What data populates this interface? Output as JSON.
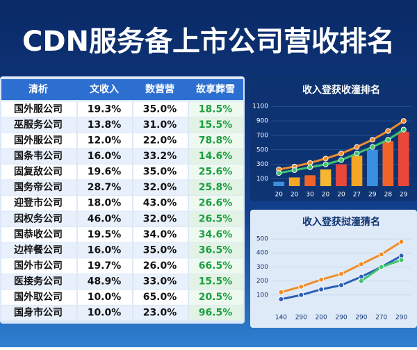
{
  "title": "CDN服务备上市公司营收排名",
  "table": {
    "header": [
      "清析",
      "文收入",
      "数营营",
      "故享葬雪"
    ],
    "rows": [
      [
        "国外服公司",
        "19.3%",
        "35.0%",
        "18.5%"
      ],
      [
        "巫服务公司",
        "13.8%",
        "31.0%",
        "15.5%"
      ],
      [
        "国外服公司",
        "12.0%",
        "22.0%",
        "78.8%"
      ],
      [
        "国条韦公司",
        "16.0%",
        "33.2%",
        "14.6%"
      ],
      [
        "固复敌公司",
        "19.6%",
        "35.0%",
        "25.6%"
      ],
      [
        "国务帝公司",
        "28.7%",
        "32.0%",
        "25.8%"
      ],
      [
        "迎登市公司",
        "18.0%",
        "43.0%",
        "26.6%"
      ],
      [
        "因权务公司",
        "46.0%",
        "32.0%",
        "26.5%"
      ],
      [
        "国恭收公司",
        "19.5%",
        "34.0%",
        "34.6%"
      ],
      [
        "边梓餐公司",
        "16.0%",
        "35.0%",
        "36.5%"
      ],
      [
        "国外市公司",
        "19.7%",
        "26.0%",
        "66.5%"
      ],
      [
        "医接务公司",
        "48.9%",
        "33.0%",
        "15.5%"
      ],
      [
        "国外取公司",
        "10.0%",
        "65.0%",
        "20.5%"
      ],
      [
        "国身市公司",
        "10.0%",
        "23.0%",
        "96.5%"
      ]
    ]
  },
  "chart_data": [
    {
      "type": "bar",
      "title": "收入登获收潼排名",
      "categories": [
        "20",
        "20",
        "30",
        "20",
        "20",
        "27",
        "29",
        "28",
        "29"
      ],
      "series": [
        {
          "type": "bar",
          "colors": [
            "#3b8fe0",
            "#f5a623",
            "#f0642a",
            "#f5b731",
            "#e8473a",
            "#f5a623",
            "#3b8fe0",
            "#f0642a",
            "#e8473a"
          ],
          "values": [
            60,
            120,
            150,
            230,
            300,
            420,
            500,
            620,
            750
          ]
        },
        {
          "type": "line",
          "color": "#f28c28",
          "values": [
            230,
            270,
            320,
            380,
            450,
            540,
            640,
            760,
            900
          ]
        },
        {
          "type": "line",
          "color": "#3ec46d",
          "values": [
            180,
            220,
            260,
            300,
            360,
            450,
            540,
            640,
            780
          ]
        }
      ],
      "ylim": [
        0,
        1150
      ],
      "yticks": [
        100,
        300,
        500,
        700,
        900,
        1100
      ]
    },
    {
      "type": "line",
      "title": "收入登获挝潼猜名",
      "categories": [
        "140",
        "290",
        "200",
        "290",
        "290",
        "270",
        "290"
      ],
      "series": [
        {
          "type": "line",
          "color": "#f28c28",
          "values": [
            120,
            160,
            210,
            250,
            320,
            390,
            480
          ]
        },
        {
          "type": "line",
          "color": "#2a5fb5",
          "values": [
            70,
            100,
            140,
            170,
            230,
            300,
            380
          ]
        },
        {
          "type": "line",
          "color": "#3ec46d",
          "values": [
            null,
            null,
            null,
            null,
            200,
            300,
            350
          ]
        }
      ],
      "ylim": [
        0,
        520
      ],
      "yticks": [
        100,
        200,
        300,
        400,
        500
      ]
    }
  ]
}
